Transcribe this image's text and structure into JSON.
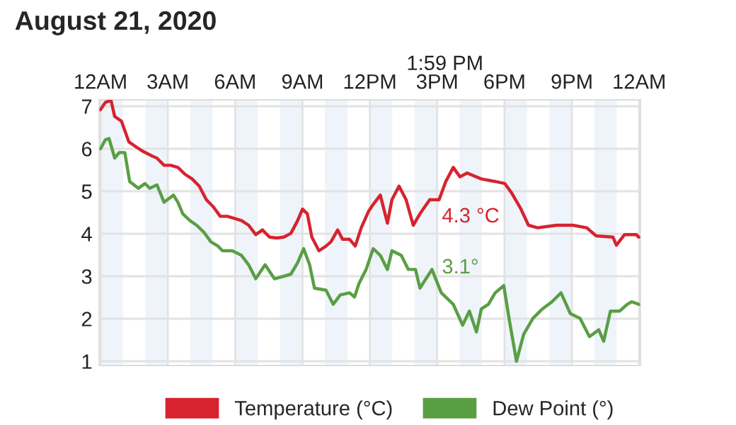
{
  "chart_data": {
    "type": "line",
    "title": "August 21, 2020",
    "xlim": [
      "2020-08-20T23:57",
      "2020-08-22T00:03"
    ],
    "ylim": [
      0.9,
      7.15
    ],
    "xticks": [
      {
        "value": "2020-08-21T00:00",
        "label": "12AM"
      },
      {
        "value": "2020-08-21T03:00",
        "label": "3AM"
      },
      {
        "value": "2020-08-21T06:00",
        "label": "6AM"
      },
      {
        "value": "2020-08-21T09:00",
        "label": "9AM"
      },
      {
        "value": "2020-08-21T12:00",
        "label": "12PM"
      },
      {
        "value": "2020-08-21T15:00",
        "label": "3PM"
      },
      {
        "value": "2020-08-21T18:00",
        "label": "6PM"
      },
      {
        "value": "2020-08-21T21:00",
        "label": "9PM"
      },
      {
        "value": "2020-08-22T00:00",
        "label": "12AM"
      }
    ],
    "yticks": [
      1,
      2,
      3,
      4,
      5,
      6,
      7
    ],
    "grid": true,
    "legend": "bottom",
    "marker": "none",
    "line_style": "solid",
    "series": [
      {
        "name": "Temperature (°C)",
        "color": "#d7232f",
        "x": [
          "2020-08-21T00:00",
          "2020-08-21T00:13",
          "2020-08-21T00:28",
          "2020-08-21T00:38",
          "2020-08-21T00:56",
          "2020-08-21T01:16",
          "2020-08-21T01:34",
          "2020-08-21T01:53",
          "2020-08-21T02:18",
          "2020-08-21T02:31",
          "2020-08-21T02:50",
          "2020-08-21T03:08",
          "2020-08-21T03:27",
          "2020-08-21T03:46",
          "2020-08-21T04:05",
          "2020-08-21T04:24",
          "2020-08-21T04:43",
          "2020-08-21T05:02",
          "2020-08-21T05:20",
          "2020-08-21T05:39",
          "2020-08-21T05:58",
          "2020-08-21T06:17",
          "2020-08-21T06:36",
          "2020-08-21T06:55",
          "2020-08-21T07:13",
          "2020-08-21T07:32",
          "2020-08-21T07:51",
          "2020-08-21T08:10",
          "2020-08-21T08:29",
          "2020-08-21T08:47",
          "2020-08-21T09:00",
          "2020-08-21T09:13",
          "2020-08-21T09:25",
          "2020-08-21T09:44",
          "2020-08-21T10:03",
          "2020-08-21T10:16",
          "2020-08-21T10:34",
          "2020-08-21T10:47",
          "2020-08-21T11:06",
          "2020-08-21T11:21",
          "2020-08-21T11:37",
          "2020-08-21T11:56",
          "2020-08-21T12:09",
          "2020-08-21T12:28",
          "2020-08-21T12:47",
          "2020-08-21T12:59",
          "2020-08-21T13:18",
          "2020-08-21T13:37",
          "2020-08-21T13:56",
          "2020-08-21T14:14",
          "2020-08-21T14:40",
          "2020-08-21T15:05",
          "2020-08-21T15:23",
          "2020-08-21T15:43",
          "2020-08-21T16:01",
          "2020-08-21T16:20",
          "2020-08-21T16:58",
          "2020-08-21T17:35",
          "2020-08-21T18:01",
          "2020-08-21T18:19",
          "2020-08-21T18:44",
          "2020-08-21T19:04",
          "2020-08-21T19:29",
          "2020-08-21T20:19",
          "2020-08-21T21:03",
          "2020-08-21T21:40",
          "2020-08-21T22:05",
          "2020-08-21T22:50",
          "2020-08-21T22:59",
          "2020-08-21T23:21",
          "2020-08-21T23:52",
          "2020-08-21T23:59"
        ],
        "values": [
          6.92,
          7.09,
          7.14,
          6.76,
          6.65,
          6.16,
          6.05,
          5.94,
          5.83,
          5.78,
          5.61,
          5.61,
          5.56,
          5.4,
          5.29,
          5.12,
          4.8,
          4.63,
          4.41,
          4.41,
          4.36,
          4.31,
          4.2,
          3.98,
          4.09,
          3.92,
          3.9,
          3.92,
          4.01,
          4.31,
          4.58,
          4.47,
          3.92,
          3.6,
          3.71,
          3.81,
          4.09,
          3.87,
          3.87,
          3.71,
          4.14,
          4.52,
          4.69,
          4.91,
          4.25,
          4.8,
          5.12,
          4.8,
          4.2,
          4.47,
          4.8,
          4.8,
          5.23,
          5.56,
          5.34,
          5.43,
          5.29,
          5.23,
          5.18,
          4.96,
          4.58,
          4.2,
          4.14,
          4.2,
          4.2,
          4.14,
          3.95,
          3.92,
          3.73,
          3.98,
          3.98,
          3.92
        ]
      },
      {
        "name": "Dew Point (°)",
        "color": "#5a9e44",
        "x": [
          "2020-08-21T00:00",
          "2020-08-21T00:13",
          "2020-08-21T00:23",
          "2020-08-21T00:38",
          "2020-08-21T00:50",
          "2020-08-21T01:05",
          "2020-08-21T01:18",
          "2020-08-21T01:41",
          "2020-08-21T01:59",
          "2020-08-21T02:12",
          "2020-08-21T02:31",
          "2020-08-21T02:50",
          "2020-08-21T03:15",
          "2020-08-21T03:27",
          "2020-08-21T03:40",
          "2020-08-21T03:59",
          "2020-08-21T04:17",
          "2020-08-21T04:37",
          "2020-08-21T04:55",
          "2020-08-21T05:14",
          "2020-08-21T05:26",
          "2020-08-21T05:52",
          "2020-08-21T06:17",
          "2020-08-21T06:36",
          "2020-08-21T06:55",
          "2020-08-21T07:20",
          "2020-08-21T07:45",
          "2020-08-21T08:10",
          "2020-08-21T08:29",
          "2020-08-21T08:47",
          "2020-08-21T09:03",
          "2020-08-21T09:19",
          "2020-08-21T09:32",
          "2020-08-21T10:03",
          "2020-08-21T10:22",
          "2020-08-21T10:41",
          "2020-08-21T11:06",
          "2020-08-21T11:19",
          "2020-08-21T11:31",
          "2020-08-21T11:50",
          "2020-08-21T12:09",
          "2020-08-21T12:28",
          "2020-08-21T12:47",
          "2020-08-21T12:59",
          "2020-08-21T13:24",
          "2020-08-21T13:43",
          "2020-08-21T14:02",
          "2020-08-21T14:14",
          "2020-08-21T14:46",
          "2020-08-21T15:11",
          "2020-08-21T15:43",
          "2020-08-21T16:08",
          "2020-08-21T16:26",
          "2020-08-21T16:45",
          "2020-08-21T16:58",
          "2020-08-21T17:17",
          "2020-08-21T17:35",
          "2020-08-21T17:58",
          "2020-08-21T18:13",
          "2020-08-21T18:32",
          "2020-08-21T18:51",
          "2020-08-21T19:16",
          "2020-08-21T19:41",
          "2020-08-21T20:07",
          "2020-08-21T20:31",
          "2020-08-21T20:56",
          "2020-08-21T21:22",
          "2020-08-21T21:47",
          "2020-08-21T22:12",
          "2020-08-21T22:25",
          "2020-08-21T22:43",
          "2020-08-21T23:08",
          "2020-08-21T23:28",
          "2020-08-21T23:40",
          "2020-08-21T23:59"
        ],
        "values": [
          6.0,
          6.21,
          6.24,
          5.78,
          5.91,
          5.91,
          5.23,
          5.07,
          5.18,
          5.07,
          5.15,
          4.74,
          4.91,
          4.74,
          4.47,
          4.31,
          4.2,
          4.03,
          3.81,
          3.71,
          3.6,
          3.6,
          3.49,
          3.27,
          2.94,
          3.27,
          2.94,
          3.0,
          3.05,
          3.32,
          3.65,
          3.27,
          2.72,
          2.67,
          2.34,
          2.56,
          2.61,
          2.51,
          2.83,
          3.16,
          3.65,
          3.49,
          3.16,
          3.6,
          3.49,
          3.16,
          3.16,
          2.72,
          3.16,
          2.61,
          2.34,
          1.85,
          2.18,
          1.69,
          2.23,
          2.34,
          2.61,
          2.78,
          1.96,
          1.0,
          1.63,
          2.01,
          2.23,
          2.4,
          2.61,
          2.12,
          2.01,
          1.58,
          1.74,
          1.47,
          2.18,
          2.18,
          2.34,
          2.4,
          2.34
        ]
      }
    ],
    "bands": [
      {
        "axis": "x",
        "from": "2020-08-21T00:00",
        "to": "2020-08-21T01:00",
        "color": "#eef4fa"
      },
      {
        "axis": "x",
        "from": "2020-08-21T02:00",
        "to": "2020-08-21T03:00",
        "color": "#eef4fa"
      },
      {
        "axis": "x",
        "from": "2020-08-21T04:00",
        "to": "2020-08-21T05:00",
        "color": "#eef4fa"
      },
      {
        "axis": "x",
        "from": "2020-08-21T06:00",
        "to": "2020-08-21T07:00",
        "color": "#eef4fa"
      },
      {
        "axis": "x",
        "from": "2020-08-21T08:00",
        "to": "2020-08-21T09:00",
        "color": "#eef4fa"
      },
      {
        "axis": "x",
        "from": "2020-08-21T10:00",
        "to": "2020-08-21T11:00",
        "color": "#eef4fa"
      },
      {
        "axis": "x",
        "from": "2020-08-21T12:00",
        "to": "2020-08-21T13:00",
        "color": "#eef4fa"
      },
      {
        "axis": "x",
        "from": "2020-08-21T14:00",
        "to": "2020-08-21T15:00",
        "color": "#eef4fa"
      },
      {
        "axis": "x",
        "from": "2020-08-21T16:00",
        "to": "2020-08-21T17:00",
        "color": "#eef4fa"
      },
      {
        "axis": "x",
        "from": "2020-08-21T18:00",
        "to": "2020-08-21T19:00",
        "color": "#eef4fa"
      },
      {
        "axis": "x",
        "from": "2020-08-21T20:00",
        "to": "2020-08-21T21:00",
        "color": "#eef4fa"
      },
      {
        "axis": "x",
        "from": "2020-08-21T22:00",
        "to": "2020-08-21T23:00",
        "color": "#eef4fa"
      }
    ],
    "annotations": [
      "1:59 PM",
      {
        "text": "4.3 °C",
        "x": "2020-08-21T13:59",
        "y": 4.3
      },
      {
        "text": "3.1°",
        "x": "2020-08-21T13:59",
        "y": 3.1
      }
    ]
  }
}
